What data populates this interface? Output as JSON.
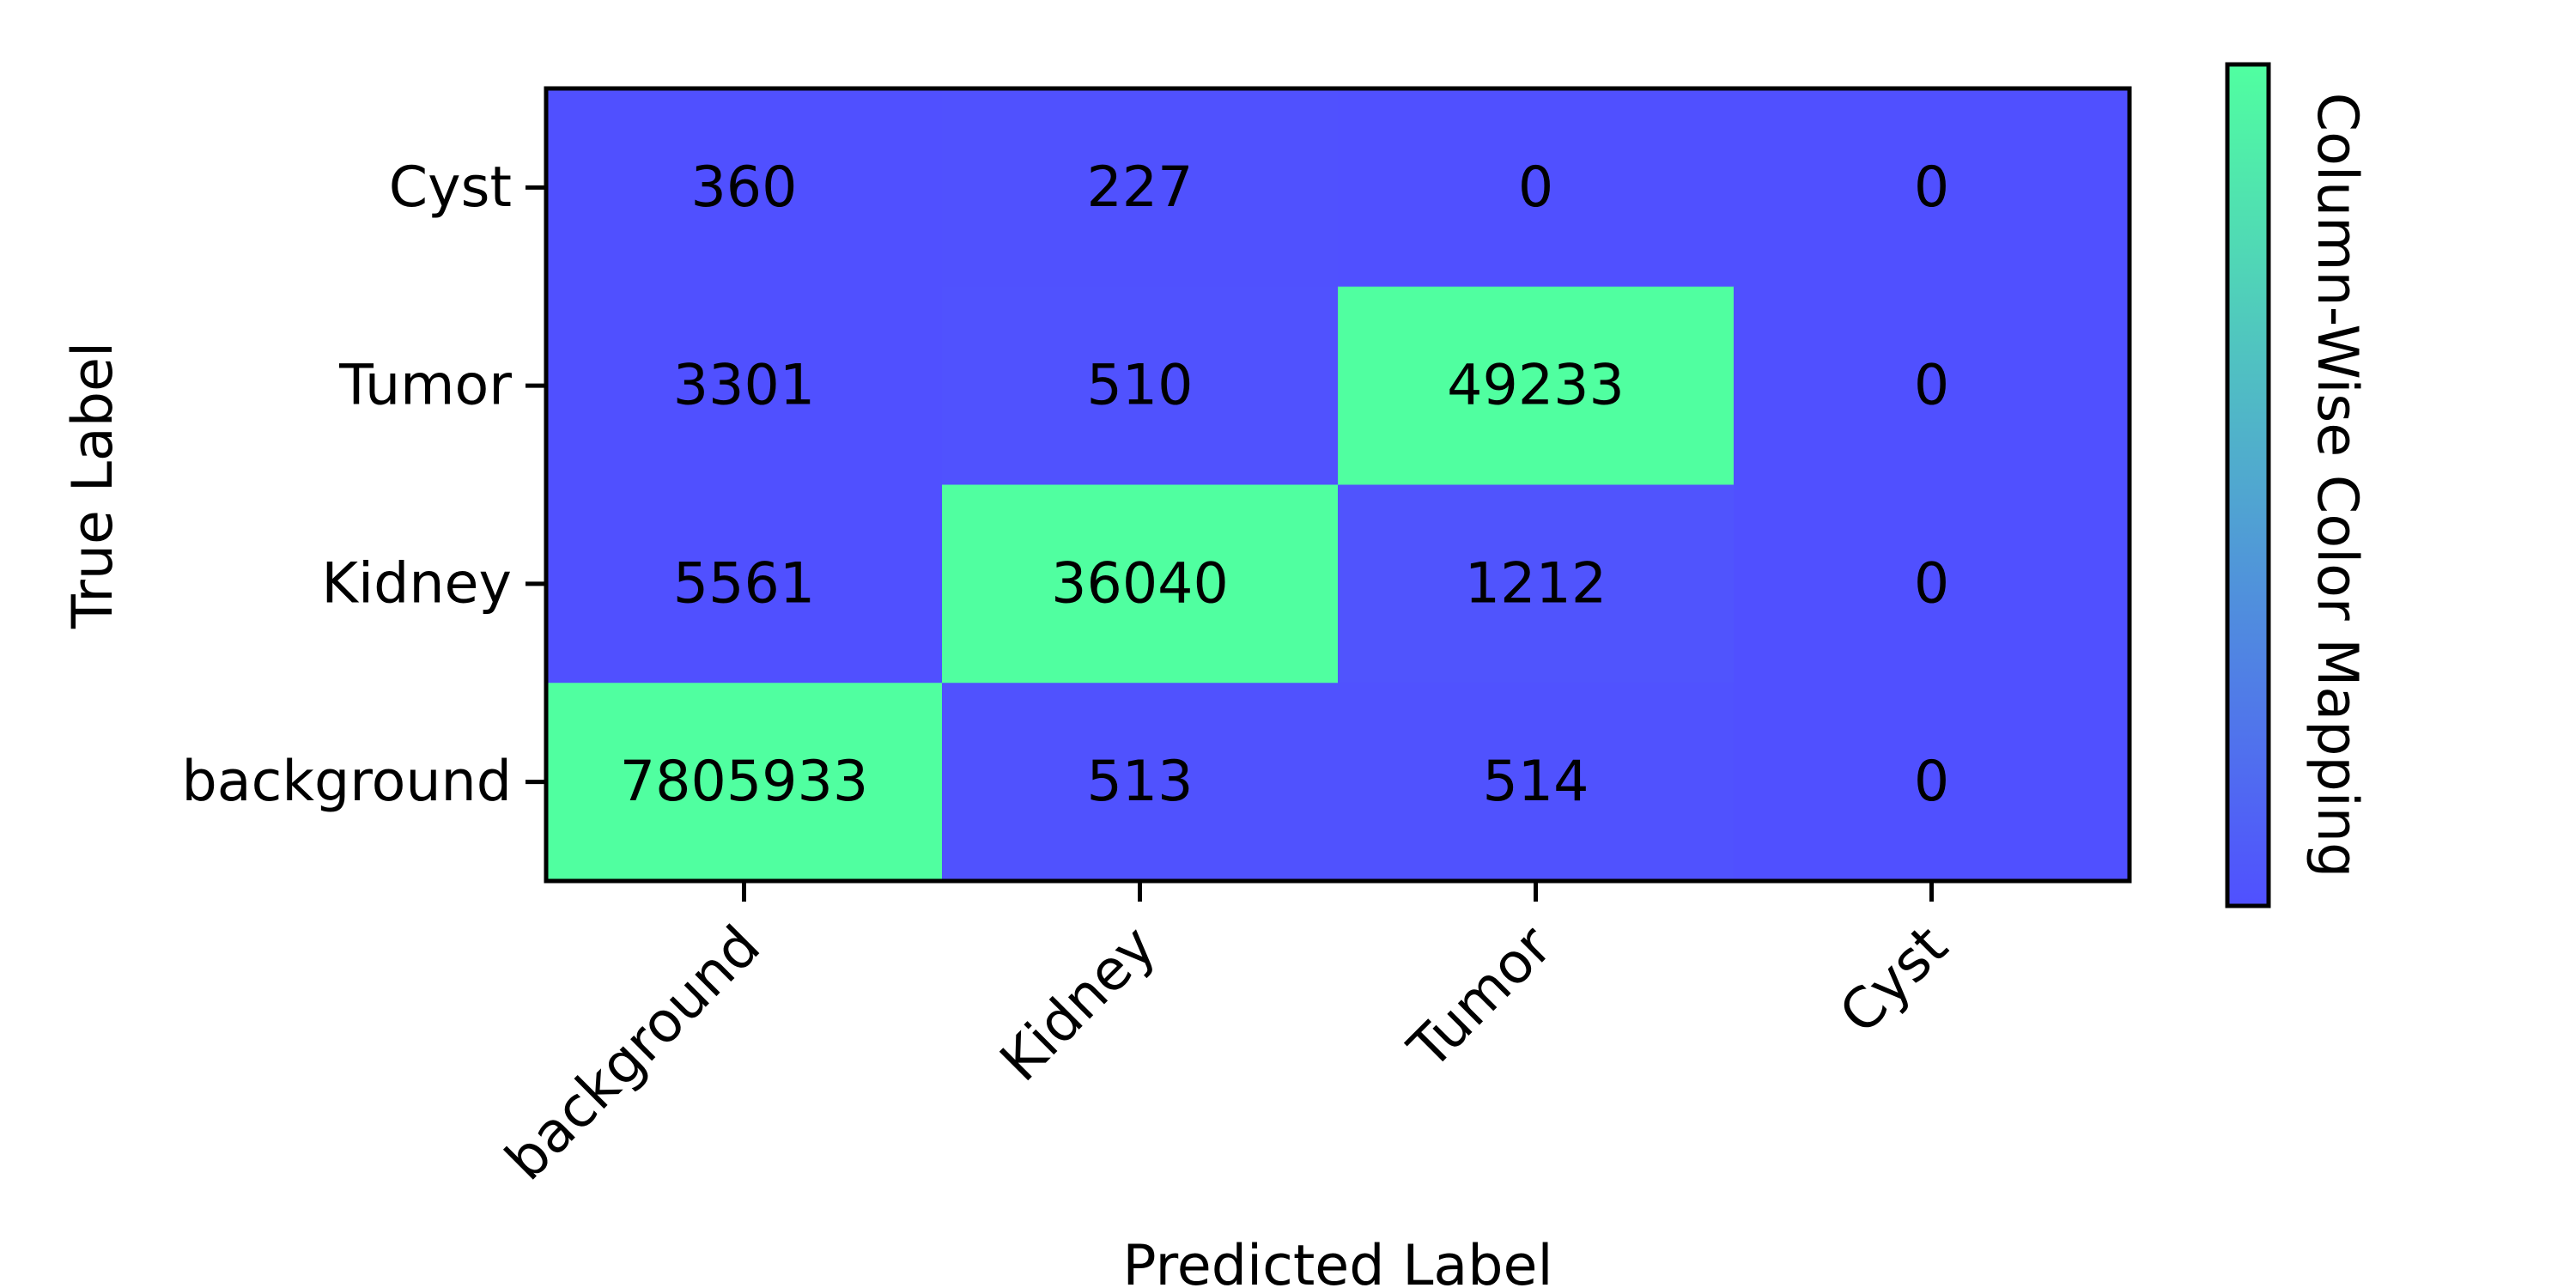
{
  "chart_data": {
    "type": "heatmap",
    "title": "",
    "xlabel": "Predicted Label",
    "ylabel": "True Label",
    "x_categories": [
      "background",
      "Kidney",
      "Tumor",
      "Cyst"
    ],
    "y_categories": [
      "Cyst",
      "Tumor",
      "Kidney",
      "background"
    ],
    "values": [
      [
        360,
        227,
        0,
        0
      ],
      [
        3301,
        510,
        49233,
        0
      ],
      [
        5561,
        36040,
        1212,
        0
      ],
      [
        7805933,
        513,
        514,
        0
      ]
    ],
    "color_normalization": "column-wise",
    "colorbar_label": "Column-Wise Color Mapping",
    "colormap": {
      "low": "#5050ff",
      "high": "#50ffa0"
    },
    "x_tick_rotation_deg": 45,
    "grid": false
  }
}
